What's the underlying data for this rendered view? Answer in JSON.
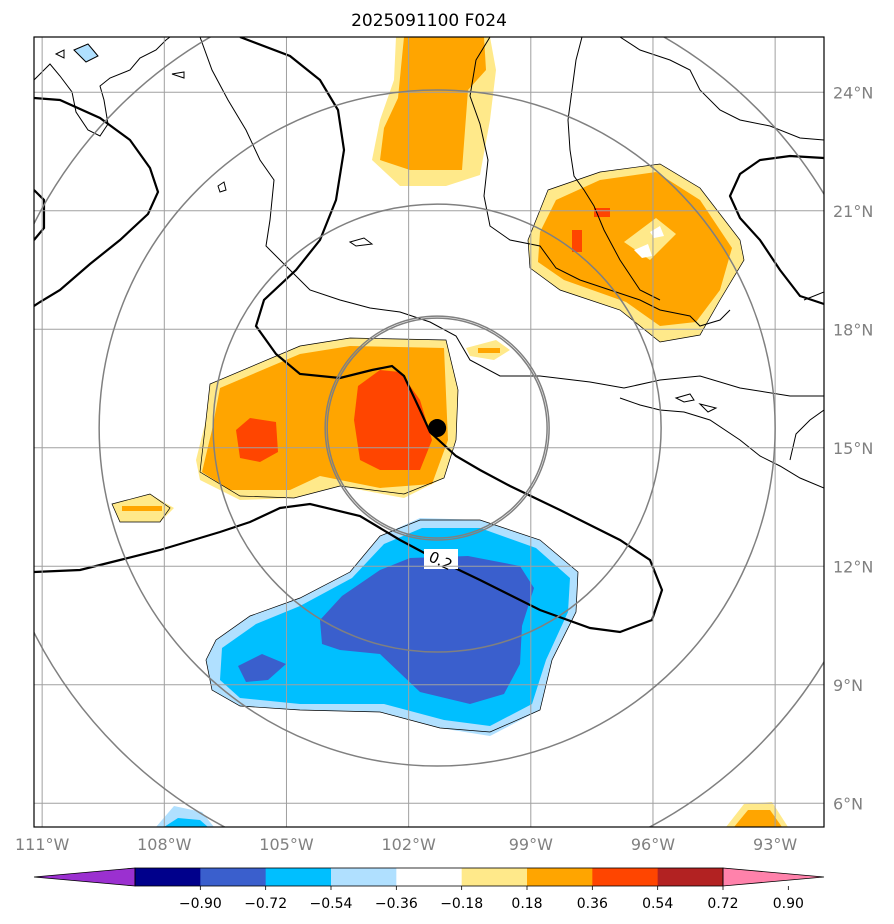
{
  "chart_data": {
    "type": "map",
    "title": "2025091100 F024",
    "lon_range": [
      -111.2,
      -91.8
    ],
    "lat_range": [
      5.4,
      25.4
    ],
    "lon_ticks": [
      -111,
      -108,
      -105,
      -102,
      -99,
      -96,
      -93
    ],
    "lon_tick_labels": [
      "111°W",
      "108°W",
      "105°W",
      "102°W",
      "99°W",
      "96°W",
      "93°W"
    ],
    "lat_ticks": [
      6,
      9,
      12,
      15,
      18,
      21,
      24
    ],
    "lat_tick_labels": [
      "6°N",
      "9°N",
      "12°N",
      "15°N",
      "18°N",
      "21°N",
      "24°N"
    ],
    "grid": true,
    "center_marker": {
      "lon": -101.3,
      "lat": 15.5
    },
    "contour_label": "0.2",
    "colorbar": {
      "colors": [
        "#9b30d0",
        "#00008b",
        "#3a5fcd",
        "#00bfff",
        "#b0e0ff",
        "#ffffff",
        "#ffe98a",
        "#ffa500",
        "#ff4500",
        "#b22222",
        "#ff82ab"
      ],
      "levels": [
        -0.9,
        -0.72,
        -0.54,
        -0.36,
        -0.18,
        0.18,
        0.36,
        0.54,
        0.72,
        0.9
      ],
      "labels": [
        "−0.90",
        "−0.72",
        "−0.54",
        "−0.36",
        "−0.18",
        "0.18",
        "0.36",
        "0.54",
        "0.72",
        "0.90"
      ],
      "extend": "both"
    }
  }
}
